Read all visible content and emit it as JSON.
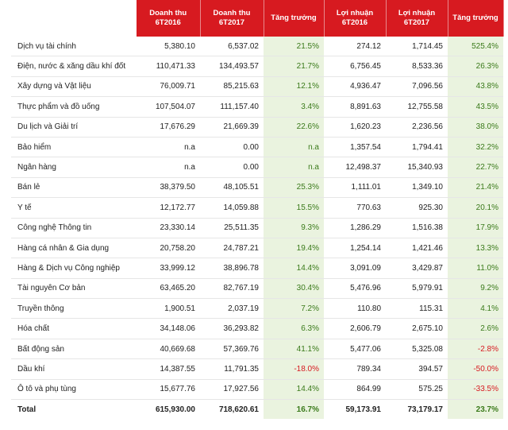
{
  "headers": {
    "h1": [
      "Doanh thu",
      "6T2016"
    ],
    "h2": [
      "Doanh thu",
      "6T2017"
    ],
    "h3": "Tăng trưởng",
    "h4": [
      "Lợi nhuận",
      "6T2016"
    ],
    "h5": [
      "Lợi nhuận",
      "6T2017"
    ],
    "h6": "Tăng trưởng"
  },
  "rows": [
    {
      "name": "Dịch vụ tài chính",
      "rev16": "5,380.10",
      "rev17": "6,537.02",
      "rg": "21.5%",
      "p16": "274.12",
      "p17": "1,714.45",
      "pg": "525.4%"
    },
    {
      "name": "Điện, nước & xăng dầu khí đốt",
      "rev16": "110,471.33",
      "rev17": "134,493.57",
      "rg": "21.7%",
      "p16": "6,756.45",
      "p17": "8,533.36",
      "pg": "26.3%"
    },
    {
      "name": "Xây dựng và Vật liệu",
      "rev16": "76,009.71",
      "rev17": "85,215.63",
      "rg": "12.1%",
      "p16": "4,936.47",
      "p17": "7,096.56",
      "pg": "43.8%"
    },
    {
      "name": "Thực phẩm và đồ uống",
      "rev16": "107,504.07",
      "rev17": "111,157.40",
      "rg": "3.4%",
      "p16": "8,891.63",
      "p17": "12,755.58",
      "pg": "43.5%"
    },
    {
      "name": "Du lịch và Giải trí",
      "rev16": "17,676.29",
      "rev17": "21,669.39",
      "rg": "22.6%",
      "p16": "1,620.23",
      "p17": "2,236.56",
      "pg": "38.0%"
    },
    {
      "name": "Bảo hiểm",
      "rev16": "n.a",
      "rev17": "0.00",
      "rg": "n.a",
      "p16": "1,357.54",
      "p17": "1,794.41",
      "pg": "32.2%"
    },
    {
      "name": "Ngân hàng",
      "rev16": "n.a",
      "rev17": "0.00",
      "rg": "n.a",
      "p16": "12,498.37",
      "p17": "15,340.93",
      "pg": "22.7%"
    },
    {
      "name": "Bán lẻ",
      "rev16": "38,379.50",
      "rev17": "48,105.51",
      "rg": "25.3%",
      "p16": "1,111.01",
      "p17": "1,349.10",
      "pg": "21.4%"
    },
    {
      "name": "Y tế",
      "rev16": "12,172.77",
      "rev17": "14,059.88",
      "rg": "15.5%",
      "p16": "770.63",
      "p17": "925.30",
      "pg": "20.1%"
    },
    {
      "name": "Công nghệ Thông tin",
      "rev16": "23,330.14",
      "rev17": "25,511.35",
      "rg": "9.3%",
      "p16": "1,286.29",
      "p17": "1,516.38",
      "pg": "17.9%"
    },
    {
      "name": "Hàng cá nhân & Gia dụng",
      "rev16": "20,758.20",
      "rev17": "24,787.21",
      "rg": "19.4%",
      "p16": "1,254.14",
      "p17": "1,421.46",
      "pg": "13.3%"
    },
    {
      "name": "Hàng & Dịch vụ Công nghiệp",
      "rev16": "33,999.12",
      "rev17": "38,896.78",
      "rg": "14.4%",
      "p16": "3,091.09",
      "p17": "3,429.87",
      "pg": "11.0%"
    },
    {
      "name": "Tài nguyên Cơ bản",
      "rev16": "63,465.20",
      "rev17": "82,767.19",
      "rg": "30.4%",
      "p16": "5,476.96",
      "p17": "5,979.91",
      "pg": "9.2%"
    },
    {
      "name": "Truyền thông",
      "rev16": "1,900.51",
      "rev17": "2,037.19",
      "rg": "7.2%",
      "p16": "110.80",
      "p17": "115.31",
      "pg": "4.1%"
    },
    {
      "name": "Hóa chất",
      "rev16": "34,148.06",
      "rev17": "36,293.82",
      "rg": "6.3%",
      "p16": "2,606.79",
      "p17": "2,675.10",
      "pg": "2.6%"
    },
    {
      "name": "Bất động sản",
      "rev16": "40,669.68",
      "rev17": "57,369.76",
      "rg": "41.1%",
      "p16": "5,477.06",
      "p17": "5,325.08",
      "pg": "-2.8%"
    },
    {
      "name": "Dầu khí",
      "rev16": "14,387.55",
      "rev17": "11,791.35",
      "rg": "-18.0%",
      "p16": "789.34",
      "p17": "394.57",
      "pg": "-50.0%"
    },
    {
      "name": "Ô tô và phụ tùng",
      "rev16": "15,677.76",
      "rev17": "17,927.56",
      "rg": "14.4%",
      "p16": "864.99",
      "p17": "575.25",
      "pg": "-33.5%"
    }
  ],
  "total": {
    "name": "Total",
    "rev16": "615,930.00",
    "rev17": "718,620.61",
    "rg": "16.7%",
    "p16": "59,173.91",
    "p17": "73,179.17",
    "pg": "23.7%"
  },
  "colors": {
    "header_bg": "#d71a20",
    "growth_bg": "#eaf3df",
    "positive": "#3a7a1a",
    "negative": "#d71a20"
  }
}
